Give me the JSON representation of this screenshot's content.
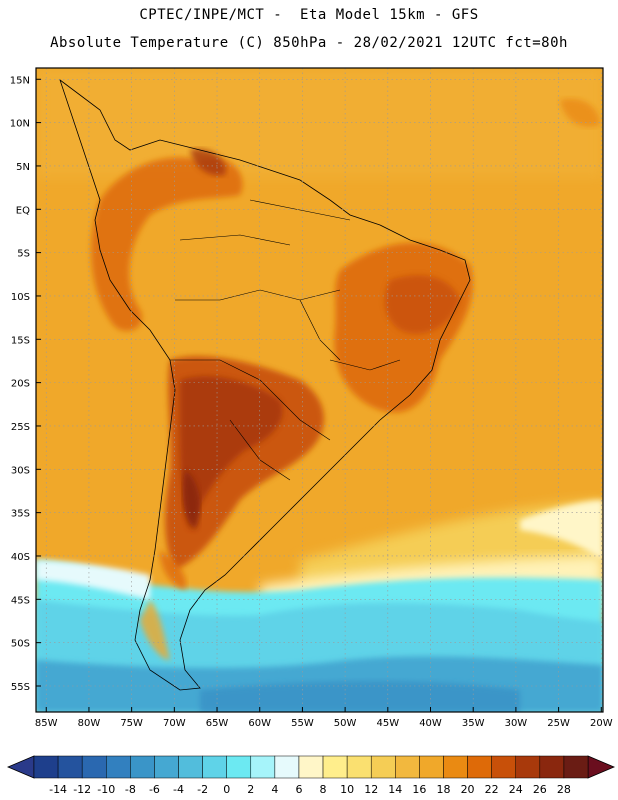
{
  "header": {
    "line1": "CPTEC/INPE/MCT -  Eta Model 15km - GFS",
    "line2": "Absolute Temperature (C) 850hPa - 28/02/2021 12UTC fct=80h"
  },
  "map": {
    "lat_labels": [
      "15N",
      "10N",
      "5N",
      "EQ",
      "5S",
      "10S",
      "15S",
      "20S",
      "25S",
      "30S",
      "35S",
      "40S",
      "45S",
      "50S",
      "55S"
    ],
    "lon_labels": [
      "85W",
      "80W",
      "75W",
      "70W",
      "65W",
      "60W",
      "55W",
      "50W",
      "45W",
      "40W",
      "35W",
      "30W",
      "25W",
      "20W"
    ],
    "lat_values": [
      15,
      10,
      5,
      0,
      -5,
      -10,
      -15,
      -20,
      -25,
      -30,
      -35,
      -40,
      -45,
      -50,
      -55
    ],
    "lon_values": [
      -85,
      -80,
      -75,
      -70,
      -65,
      -60,
      -55,
      -50,
      -45,
      -40,
      -35,
      -30,
      -25,
      -20
    ]
  },
  "colorbar": {
    "labels": [
      "-14",
      "-12",
      "-10",
      "-8",
      "-6",
      "-4",
      "-2",
      "0",
      "2",
      "4",
      "6",
      "8",
      "10",
      "12",
      "14",
      "16",
      "18",
      "20",
      "22",
      "24",
      "26",
      "28"
    ],
    "colors": [
      "#1e3f8c",
      "#24539e",
      "#2a68b0",
      "#3280bf",
      "#3a95c8",
      "#45a8d2",
      "#52bddc",
      "#5fd3e8",
      "#6ce9f2",
      "#a6f4fa",
      "#e6fafc",
      "#fff6c8",
      "#ffee8c",
      "#fae070",
      "#f5cd55",
      "#f2b83e",
      "#f0a82a",
      "#ea8a12",
      "#de6a08",
      "#c85009",
      "#a8390b",
      "#8a270e",
      "#6a1c14"
    ],
    "low_color": "#2a3a8a",
    "high_color": "#6a0e1e"
  }
}
